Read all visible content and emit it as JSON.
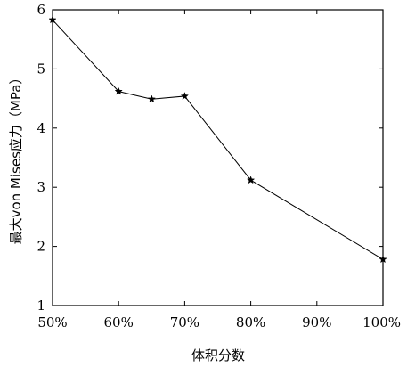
{
  "chart_data": {
    "type": "line",
    "title": "",
    "xlabel": "体积分数",
    "ylabel": "最大von Mises应力（MPa）",
    "x_unit": "%",
    "xlim": [
      50,
      100
    ],
    "ylim": [
      1,
      6
    ],
    "x_ticks": [
      "50%",
      "60%",
      "70%",
      "80%",
      "90%",
      "100%"
    ],
    "y_ticks": [
      "1",
      "2",
      "3",
      "4",
      "5",
      "6"
    ],
    "grid": false,
    "legend": "none",
    "marker": "star",
    "line_color": "#000000",
    "series": [
      {
        "x": [
          50,
          60,
          65,
          70,
          80,
          100
        ],
        "y": [
          5.83,
          4.62,
          4.49,
          4.54,
          3.12,
          1.78
        ]
      }
    ]
  }
}
